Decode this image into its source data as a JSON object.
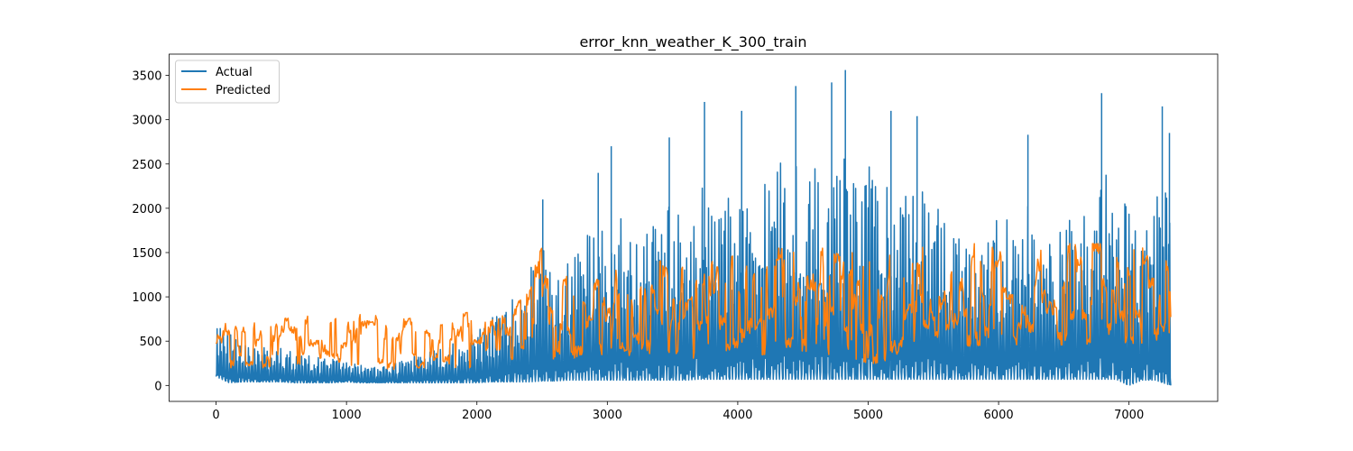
{
  "chart_data": {
    "type": "line",
    "title": "error_knn_weather_K_300_train",
    "xlabel": "",
    "ylabel": "",
    "xlim": [
      -360,
      7680
    ],
    "ylim": [
      -180,
      3740
    ],
    "xticks": [
      0,
      1000,
      2000,
      3000,
      4000,
      5000,
      6000,
      7000
    ],
    "yticks": [
      0,
      500,
      1000,
      1500,
      2000,
      2500,
      3000,
      3500
    ],
    "legend_position": "top-left",
    "grid": false,
    "n_points": 7320,
    "series": [
      {
        "name": "Actual",
        "color": "#1f77b4",
        "envelope_x": [
          0,
          100,
          200,
          300,
          400,
          500,
          600,
          700,
          800,
          900,
          1000,
          1100,
          1200,
          1300,
          1400,
          1500,
          1600,
          1700,
          1800,
          1900,
          2000,
          2100,
          2200,
          2300,
          2400,
          2500,
          2600,
          2700,
          2800,
          2900,
          3000,
          3100,
          3200,
          3300,
          3400,
          3500,
          3600,
          3700,
          3800,
          3900,
          4000,
          4100,
          4200,
          4300,
          4400,
          4500,
          4600,
          4700,
          4800,
          4900,
          5000,
          5100,
          5200,
          5300,
          5400,
          5500,
          5600,
          5700,
          5800,
          5900,
          6000,
          6100,
          6200,
          6300,
          6400,
          6500,
          6600,
          6700,
          6800,
          6900,
          7000,
          7100,
          7200,
          7320
        ],
        "low": [
          100,
          30,
          40,
          40,
          40,
          40,
          30,
          30,
          30,
          30,
          40,
          30,
          30,
          30,
          30,
          30,
          30,
          30,
          30,
          30,
          30,
          40,
          40,
          40,
          40,
          50,
          50,
          60,
          60,
          60,
          60,
          60,
          60,
          60,
          60,
          60,
          60,
          70,
          70,
          70,
          70,
          70,
          70,
          70,
          70,
          70,
          70,
          70,
          70,
          70,
          70,
          70,
          70,
          70,
          70,
          70,
          70,
          70,
          70,
          70,
          70,
          70,
          70,
          70,
          70,
          70,
          70,
          70,
          70,
          70,
          0,
          60,
          60,
          0
        ],
        "high": [
          930,
          800,
          650,
          600,
          560,
          560,
          500,
          450,
          400,
          420,
          420,
          300,
          260,
          300,
          350,
          450,
          500,
          550,
          600,
          700,
          800,
          1000,
          1200,
          1400,
          1800,
          2100,
          1700,
          1900,
          2200,
          2400,
          2400,
          2700,
          2100,
          2500,
          2600,
          2800,
          2400,
          3200,
          2900,
          2900,
          2700,
          3100,
          3200,
          3300,
          3400,
          3400,
          3300,
          3350,
          3560,
          3300,
          3400,
          3100,
          2900,
          3100,
          3050,
          3000,
          2600,
          2500,
          2400,
          2300,
          2500,
          2700,
          2800,
          2400,
          2300,
          2400,
          2600,
          2700,
          3300,
          3000,
          2600,
          2200,
          3100,
          2850
        ],
        "spikes": [
          {
            "x": 2505,
            "y": 2100
          },
          {
            "x": 2930,
            "y": 2400
          },
          {
            "x": 3030,
            "y": 2700
          },
          {
            "x": 3475,
            "y": 2800
          },
          {
            "x": 3745,
            "y": 3200
          },
          {
            "x": 4030,
            "y": 3100
          },
          {
            "x": 4445,
            "y": 3380
          },
          {
            "x": 4720,
            "y": 3420
          },
          {
            "x": 4825,
            "y": 3560
          },
          {
            "x": 5175,
            "y": 3100
          },
          {
            "x": 5375,
            "y": 3040
          },
          {
            "x": 6225,
            "y": 2830
          },
          {
            "x": 6790,
            "y": 3300
          },
          {
            "x": 7255,
            "y": 3150
          },
          {
            "x": 7310,
            "y": 2850
          }
        ]
      },
      {
        "name": "Predicted",
        "color": "#ff7f0e",
        "envelope_x": [
          0,
          100,
          200,
          300,
          400,
          500,
          600,
          700,
          800,
          900,
          1000,
          1100,
          1200,
          1300,
          1400,
          1500,
          1600,
          1700,
          1800,
          1900,
          2000,
          2100,
          2200,
          2300,
          2400,
          2500,
          2600,
          2700,
          2800,
          2900,
          3000,
          3100,
          3200,
          3300,
          3400,
          3500,
          3600,
          3700,
          3800,
          3900,
          4000,
          4100,
          4200,
          4300,
          4400,
          4500,
          4600,
          4700,
          4800,
          4900,
          5000,
          5100,
          5200,
          5300,
          5400,
          5500,
          5600,
          5700,
          5800,
          5900,
          6000,
          6100,
          6200,
          6300,
          6400,
          6500,
          6600,
          6700,
          6800,
          6900,
          7000,
          7100,
          7200,
          7320
        ],
        "low": [
          180,
          200,
          200,
          200,
          200,
          200,
          200,
          200,
          200,
          200,
          200,
          200,
          200,
          180,
          180,
          200,
          200,
          200,
          200,
          200,
          200,
          250,
          280,
          300,
          300,
          300,
          300,
          300,
          320,
          320,
          320,
          300,
          300,
          300,
          320,
          320,
          320,
          300,
          320,
          320,
          320,
          320,
          350,
          350,
          350,
          350,
          350,
          350,
          350,
          300,
          250,
          250,
          300,
          350,
          400,
          400,
          400,
          400,
          450,
          450,
          450,
          450,
          450,
          450,
          450,
          450,
          450,
          450,
          450,
          450,
          400,
          400,
          450,
          500
        ],
        "high": [
          750,
          760,
          760,
          790,
          790,
          790,
          790,
          790,
          790,
          800,
          800,
          800,
          800,
          750,
          760,
          780,
          800,
          800,
          800,
          820,
          830,
          850,
          900,
          1000,
          1250,
          1560,
          1050,
          1350,
          1100,
          1200,
          1400,
          1300,
          1150,
          1200,
          1400,
          1450,
          1300,
          1500,
          1550,
          1400,
          1500,
          1550,
          1550,
          1550,
          1550,
          1550,
          1550,
          1550,
          1560,
          1550,
          1500,
          1450,
          1500,
          1550,
          1550,
          1600,
          1500,
          1500,
          1600,
          1600,
          1600,
          1600,
          1600,
          1600,
          1600,
          1600,
          1600,
          1600,
          1600,
          1600,
          1600,
          1550,
          1600,
          1400
        ]
      }
    ]
  }
}
